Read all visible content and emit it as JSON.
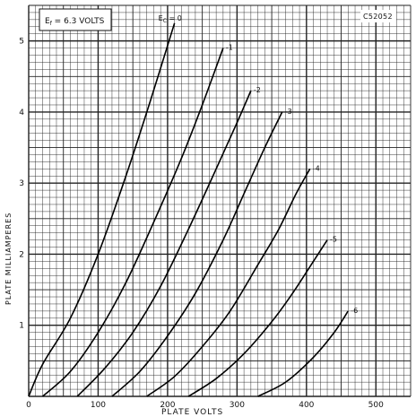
{
  "chart_data": {
    "type": "line",
    "title": "",
    "catalog_code": "C52052",
    "heater_note": "Ef = 6.3 VOLTS",
    "heater_note_parts": {
      "symbol": "E",
      "sub": "f",
      "rest": " = 6.3 VOLTS"
    },
    "xlabel": "PLATE  VOLTS",
    "ylabel": "PLATE  MILLIAMPERES",
    "xlim": [
      0,
      550
    ],
    "ylim": [
      0,
      5.5
    ],
    "x_ticks": [
      0,
      100,
      200,
      300,
      400,
      500
    ],
    "y_ticks": [
      1,
      2,
      3,
      4,
      5
    ],
    "grid": true,
    "series": [
      {
        "name": "Ec = 0",
        "label": "EC = 0",
        "label_main": "E",
        "label_sub": "C",
        "label_rest": " = 0",
        "x": [
          0,
          20,
          60,
          100,
          140,
          175,
          210
        ],
        "y": [
          0,
          0.45,
          1.1,
          2.0,
          3.1,
          4.15,
          5.25
        ]
      },
      {
        "name": "-1",
        "label": "-1",
        "x": [
          20,
          60,
          100,
          140,
          180,
          220,
          250,
          280
        ],
        "y": [
          0,
          0.35,
          0.9,
          1.6,
          2.45,
          3.35,
          4.1,
          4.9
        ]
      },
      {
        "name": "-2",
        "label": "-2",
        "x": [
          70,
          110,
          150,
          190,
          230,
          270,
          300,
          320
        ],
        "y": [
          0,
          0.4,
          0.9,
          1.55,
          2.35,
          3.2,
          3.85,
          4.3
        ]
      },
      {
        "name": "-3",
        "label": "-3",
        "x": [
          120,
          160,
          200,
          240,
          280,
          310,
          340,
          365
        ],
        "y": [
          0,
          0.35,
          0.85,
          1.45,
          2.2,
          2.85,
          3.5,
          4.0
        ]
      },
      {
        "name": "-4",
        "label": "-4",
        "x": [
          170,
          210,
          250,
          290,
          330,
          360,
          385,
          405
        ],
        "y": [
          0,
          0.28,
          0.7,
          1.2,
          1.85,
          2.35,
          2.85,
          3.2
        ]
      },
      {
        "name": "-5",
        "label": "-5",
        "x": [
          230,
          270,
          310,
          350,
          380,
          410,
          430
        ],
        "y": [
          0,
          0.25,
          0.6,
          1.05,
          1.45,
          1.9,
          2.2
        ]
      },
      {
        "name": "-6",
        "label": "-6",
        "x": [
          330,
          370,
          410,
          440,
          460
        ],
        "y": [
          0,
          0.2,
          0.55,
          0.9,
          1.2
        ]
      }
    ]
  }
}
